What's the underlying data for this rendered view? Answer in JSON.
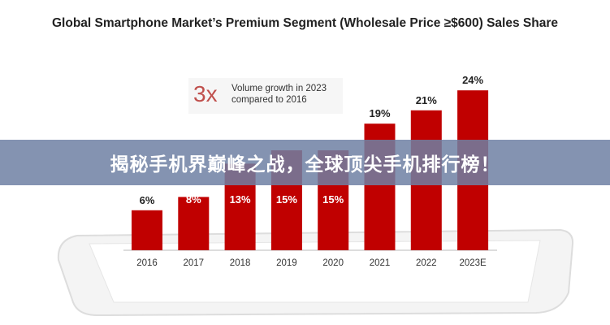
{
  "chart_data": {
    "type": "bar",
    "title": "Global Smartphone Market’s Premium Segment (Wholesale Price ≥$600) Sales Share",
    "categories": [
      "2016",
      "2017",
      "2018",
      "2019",
      "2020",
      "2021",
      "2022",
      "2023E"
    ],
    "values": [
      6,
      8,
      13,
      15,
      15,
      19,
      21,
      24
    ],
    "data_labels": [
      "6%",
      "8%",
      "13%",
      "15%",
      "15%",
      "19%",
      "21%",
      "24%"
    ],
    "ylim": [
      0,
      25
    ],
    "xlabel": "",
    "ylabel": "",
    "grid": false,
    "bar_color": "#c00000",
    "annotation": {
      "big": "3x",
      "line1": "Volume growth in 2023",
      "line2": "compared to 2016"
    }
  },
  "banner": {
    "text": "揭秘手机界巅峰之战，全球顶尖手机排行榜！"
  }
}
